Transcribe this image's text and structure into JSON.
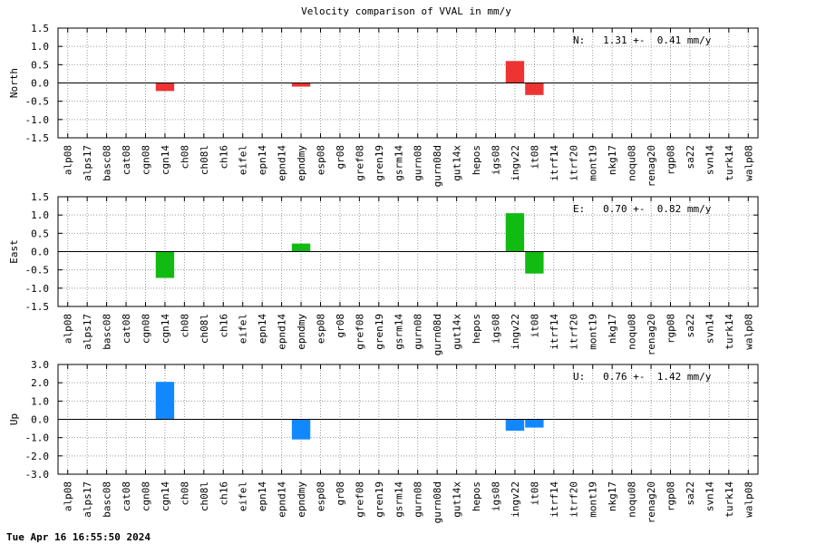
{
  "footer": {
    "timestamp": "Tue Apr 16 16:55:50 2024"
  },
  "chart_data": {
    "type": "bar",
    "title": "Velocity comparison of VVAL in mm/y",
    "categories": [
      "alp08",
      "alps17",
      "basc08",
      "cat08",
      "cgn08",
      "cgn14",
      "ch08",
      "ch08l",
      "ch16",
      "eifel",
      "epn14",
      "epnd14",
      "epndmy",
      "esp08",
      "gr08",
      "gref08",
      "gren19",
      "gsrm14",
      "gurn08",
      "gurn08d",
      "gut14x",
      "hepos",
      "igs08",
      "ingv22",
      "it08",
      "itrf14",
      "itrf20",
      "mont19",
      "nkg17",
      "noqu08",
      "renag20",
      "rgp08",
      "sa22",
      "svn14",
      "turk14",
      "walp08"
    ],
    "panels": [
      {
        "ylabel": "North",
        "color": "#ee3333",
        "ylim": [
          -1.5,
          1.5
        ],
        "yticks": [
          "1.5",
          "1.0",
          "0.5",
          "0.0",
          "-0.5",
          "-1.0",
          "-1.5"
        ],
        "annotation": "N:   1.31 +-  0.41 mm/y",
        "values": [
          0,
          0,
          0,
          0,
          0,
          -0.22,
          0,
          0,
          0,
          0,
          0,
          0,
          -0.1,
          0,
          0,
          0,
          0,
          0,
          0,
          0,
          0,
          0,
          0,
          0.6,
          -0.33,
          0,
          0,
          0,
          0,
          0,
          0,
          0,
          0,
          0,
          0,
          0
        ]
      },
      {
        "ylabel": "East",
        "color": "#11bb11",
        "ylim": [
          -1.5,
          1.5
        ],
        "yticks": [
          "1.5",
          "1.0",
          "0.5",
          "0.0",
          "-0.5",
          "-1.0",
          "-1.5"
        ],
        "annotation": "E:   0.70 +-  0.82 mm/y",
        "values": [
          0,
          0,
          0,
          0,
          0,
          -0.72,
          0,
          0,
          0,
          0,
          0,
          0,
          0.22,
          0,
          0,
          0,
          0,
          0,
          0,
          0,
          0,
          0,
          0,
          1.05,
          -0.6,
          0,
          0,
          0,
          0,
          0,
          0,
          0,
          0,
          0,
          0,
          0
        ]
      },
      {
        "ylabel": "Up",
        "color": "#1188ff",
        "ylim": [
          -3.0,
          3.0
        ],
        "yticks": [
          "3.0",
          "2.0",
          "1.0",
          "0.0",
          "-1.0",
          "-2.0",
          "-3.0"
        ],
        "annotation": "U:   0.76 +-  1.42 mm/y",
        "values": [
          0,
          0,
          0,
          0,
          0,
          2.05,
          0,
          0,
          0,
          0,
          0,
          0,
          -1.1,
          0,
          0,
          0,
          0,
          0,
          0,
          0,
          0,
          0,
          0,
          -0.62,
          -0.45,
          0,
          0,
          0,
          0,
          0,
          0,
          0,
          0,
          0,
          0,
          0
        ]
      }
    ],
    "grid": true
  }
}
